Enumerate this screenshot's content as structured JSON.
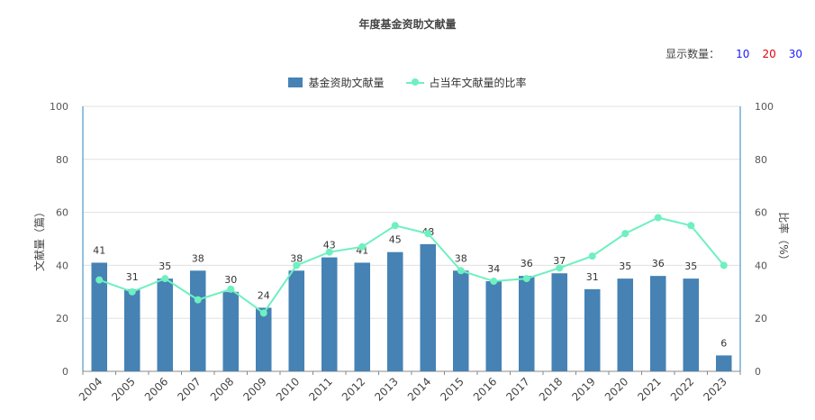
{
  "title": "年度基金资助文献量",
  "display_count": {
    "label": "显示数量：",
    "options": [
      "10",
      "20",
      "30"
    ],
    "option_colors": [
      "#1a1aff",
      "#e3000b",
      "#1a1aff"
    ]
  },
  "legend": {
    "bar_label": "基金资助文献量",
    "line_label": "占当年文献量的比率"
  },
  "colors": {
    "bar": "#4682b4",
    "line": "#6ef0c0",
    "axis": "#2a84c2",
    "grid": "#e0e0e0"
  },
  "chart_data": {
    "type": "bar",
    "title": "年度基金资助文献量",
    "categories": [
      "2004",
      "2005",
      "2006",
      "2007",
      "2008",
      "2009",
      "2010",
      "2011",
      "2012",
      "2013",
      "2014",
      "2015",
      "2016",
      "2017",
      "2018",
      "2019",
      "2020",
      "2021",
      "2022",
      "2023"
    ],
    "series": [
      {
        "name": "基金资助文献量",
        "type": "bar",
        "axis": "left",
        "values": [
          41,
          31,
          35,
          38,
          30,
          24,
          38,
          43,
          41,
          45,
          48,
          38,
          34,
          36,
          37,
          31,
          35,
          36,
          35,
          6
        ]
      },
      {
        "name": "占当年文献量的比率",
        "type": "line",
        "axis": "right",
        "values": [
          34.5,
          30,
          35,
          27,
          31,
          22,
          40,
          45,
          47,
          55,
          52,
          38,
          34,
          35,
          39,
          43.5,
          52,
          58,
          55,
          40
        ]
      }
    ],
    "ylabel": "文献量（篇）",
    "y2label": "比率（%）",
    "ylim": [
      0,
      100
    ],
    "y2lim": [
      0,
      100
    ],
    "yticks": [
      "0",
      "20",
      "40",
      "60",
      "80",
      "100"
    ],
    "grid": true,
    "legend_position": "top-center"
  }
}
